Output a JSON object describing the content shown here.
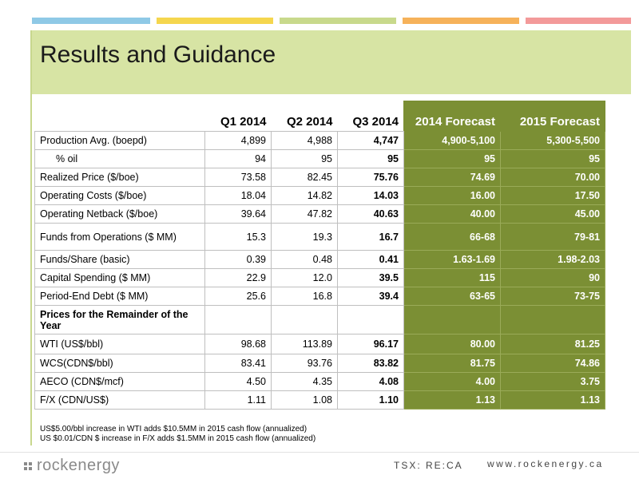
{
  "slide": {
    "title": "Results and Guidance",
    "stripe_colors": [
      "#8fc9e6",
      "#f5d64e",
      "#c8d98c",
      "#f6b25a",
      "#f39a9a"
    ]
  },
  "table": {
    "headers": [
      "",
      "Q1 2014",
      "Q2 2014",
      "Q3 2014",
      "2014 Forecast",
      "2015 Forecast"
    ],
    "rows": [
      {
        "label": "Production Avg. (boepd)",
        "values": [
          "4,899",
          "4,988",
          "4,747",
          "4,900-5,100",
          "5,300-5,500"
        ]
      },
      {
        "label": "   % oil",
        "values": [
          "94",
          "95",
          "95",
          "95",
          "95"
        ]
      },
      {
        "label": "Realized Price ($/boe)",
        "values": [
          "73.58",
          "82.45",
          "75.76",
          "74.69",
          "70.00"
        ]
      },
      {
        "label": "Operating Costs  ($/boe)",
        "values": [
          "18.04",
          "14.82",
          "14.03",
          "16.00",
          "17.50"
        ]
      },
      {
        "label": "Operating Netback ($/boe)",
        "values": [
          "39.64",
          "47.82",
          "40.63",
          "40.00",
          "45.00"
        ]
      },
      {
        "label": "Funds from Operations ($ MM)",
        "values": [
          "15.3",
          "19.3",
          "16.7",
          "66-68",
          "79-81"
        ]
      },
      {
        "label": "Funds/Share (basic)",
        "values": [
          "0.39",
          "0.48",
          "0.41",
          "1.63-1.69",
          "1.98-2.03"
        ]
      },
      {
        "label": "Capital Spending ($ MM)",
        "values": [
          "22.9",
          "12.0",
          "39.5",
          "115",
          "90"
        ]
      },
      {
        "label": "Period-End Debt ($ MM)",
        "values": [
          "25.6",
          "16.8",
          "39.4",
          "63-65",
          "73-75"
        ]
      },
      {
        "label": "Prices for the Remainder of the Year",
        "values": [
          "",
          "",
          "",
          "",
          ""
        ],
        "section": true
      },
      {
        "label": "WTI (US$/bbl)",
        "values": [
          "98.68",
          "113.89",
          "96.17",
          "80.00",
          "81.25"
        ]
      },
      {
        "label": "WCS(CDN$/bbl)",
        "values": [
          "83.41",
          "93.76",
          "83.82",
          "81.75",
          "74.86"
        ]
      },
      {
        "label": "AECO (CDN$/mcf)",
        "values": [
          "4.50",
          "4.35",
          "4.08",
          "4.00",
          "3.75"
        ]
      },
      {
        "label": "F/X (CDN/US$)",
        "values": [
          "1.11",
          "1.08",
          "1.10",
          "1.13",
          "1.13"
        ]
      }
    ]
  },
  "notes": [
    "US$5.00/bbl increase in WTI adds $10.5MM in 2015 cash flow (annualized)",
    "US $0.01/CDN $ increase in F/X adds $1.5MM in 2015 cash flow (annualized)"
  ],
  "footer": {
    "logo_text": "rockenergy",
    "ticker": "TSX: RE:CA",
    "website": "www.rockenergy.ca"
  }
}
